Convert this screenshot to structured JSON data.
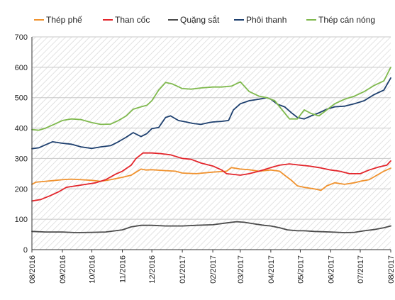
{
  "chart_data": {
    "type": "line",
    "title": "",
    "xlabel": "",
    "ylabel": "",
    "ylim": [
      0,
      700
    ],
    "yticks": [
      0,
      100,
      200,
      300,
      400,
      500,
      600,
      700
    ],
    "xlim": [
      "2016-08-01",
      "2017-08-01"
    ],
    "xticks": [
      {
        "date": "2016-08-01",
        "label": "08/2016"
      },
      {
        "date": "2016-09-01",
        "label": "09/2016"
      },
      {
        "date": "2016-10-01",
        "label": "10/2016"
      },
      {
        "date": "2016-11-01",
        "label": "11/2016"
      },
      {
        "date": "2016-12-01",
        "label": "12/2016"
      },
      {
        "date": "2017-01-01",
        "label": "01/2017"
      },
      {
        "date": "2017-02-01",
        "label": "02/2017"
      },
      {
        "date": "2017-03-01",
        "label": "03/2017"
      },
      {
        "date": "2017-04-01",
        "label": "04/2017"
      },
      {
        "date": "2017-05-01",
        "label": "05/2017"
      },
      {
        "date": "2017-06-01",
        "label": "06/2017"
      },
      {
        "date": "2017-07-01",
        "label": "07/2017"
      },
      {
        "date": "2017-08-01",
        "label": "08/2017"
      }
    ],
    "grid": "diagonal hatch background with horizontal gridlines",
    "legend": "top",
    "series": [
      {
        "name": "Thép phế",
        "color": "#f0922e",
        "points": [
          [
            "2016-08-01",
            215
          ],
          [
            "2016-08-05",
            222
          ],
          [
            "2016-08-15",
            225
          ],
          [
            "2016-08-25",
            228
          ],
          [
            "2016-09-01",
            230
          ],
          [
            "2016-09-10",
            232
          ],
          [
            "2016-09-20",
            230
          ],
          [
            "2016-10-01",
            228
          ],
          [
            "2016-10-10",
            225
          ],
          [
            "2016-10-20",
            230
          ],
          [
            "2016-11-01",
            238
          ],
          [
            "2016-11-10",
            245
          ],
          [
            "2016-11-15",
            255
          ],
          [
            "2016-11-20",
            265
          ],
          [
            "2016-11-25",
            262
          ],
          [
            "2016-12-01",
            263
          ],
          [
            "2016-12-15",
            260
          ],
          [
            "2016-12-25",
            258
          ],
          [
            "2017-01-01",
            252
          ],
          [
            "2017-01-15",
            250
          ],
          [
            "2017-02-01",
            255
          ],
          [
            "2017-02-15",
            258
          ],
          [
            "2017-02-20",
            270
          ],
          [
            "2017-03-01",
            265
          ],
          [
            "2017-03-10",
            263
          ],
          [
            "2017-03-20",
            258
          ],
          [
            "2017-04-01",
            262
          ],
          [
            "2017-04-10",
            258
          ],
          [
            "2017-04-15",
            245
          ],
          [
            "2017-04-22",
            228
          ],
          [
            "2017-04-28",
            210
          ],
          [
            "2017-05-05",
            205
          ],
          [
            "2017-05-15",
            200
          ],
          [
            "2017-05-22",
            195
          ],
          [
            "2017-05-28",
            210
          ],
          [
            "2017-06-05",
            220
          ],
          [
            "2017-06-15",
            215
          ],
          [
            "2017-06-25",
            220
          ],
          [
            "2017-07-01",
            225
          ],
          [
            "2017-07-10",
            230
          ],
          [
            "2017-07-18",
            245
          ],
          [
            "2017-07-25",
            258
          ],
          [
            "2017-08-01",
            268
          ]
        ]
      },
      {
        "name": "Than cốc",
        "color": "#e3252b",
        "points": [
          [
            "2016-08-01",
            160
          ],
          [
            "2016-08-10",
            165
          ],
          [
            "2016-08-20",
            178
          ],
          [
            "2016-08-28",
            190
          ],
          [
            "2016-09-05",
            205
          ],
          [
            "2016-09-15",
            210
          ],
          [
            "2016-09-25",
            215
          ],
          [
            "2016-10-05",
            220
          ],
          [
            "2016-10-15",
            230
          ],
          [
            "2016-10-25",
            248
          ],
          [
            "2016-11-01",
            258
          ],
          [
            "2016-11-10",
            278
          ],
          [
            "2016-11-15",
            300
          ],
          [
            "2016-11-22",
            318
          ],
          [
            "2016-12-01",
            318
          ],
          [
            "2016-12-10",
            316
          ],
          [
            "2016-12-20",
            312
          ],
          [
            "2017-01-01",
            300
          ],
          [
            "2017-01-10",
            297
          ],
          [
            "2017-01-20",
            285
          ],
          [
            "2017-02-01",
            275
          ],
          [
            "2017-02-10",
            262
          ],
          [
            "2017-02-15",
            250
          ],
          [
            "2017-03-01",
            245
          ],
          [
            "2017-03-10",
            250
          ],
          [
            "2017-03-20",
            258
          ],
          [
            "2017-04-01",
            270
          ],
          [
            "2017-04-10",
            278
          ],
          [
            "2017-04-20",
            282
          ],
          [
            "2017-05-01",
            278
          ],
          [
            "2017-05-10",
            275
          ],
          [
            "2017-05-20",
            270
          ],
          [
            "2017-06-01",
            262
          ],
          [
            "2017-06-10",
            258
          ],
          [
            "2017-06-20",
            250
          ],
          [
            "2017-07-01",
            250
          ],
          [
            "2017-07-10",
            262
          ],
          [
            "2017-07-20",
            272
          ],
          [
            "2017-07-28",
            278
          ],
          [
            "2017-08-01",
            292
          ]
        ]
      },
      {
        "name": "Quặng sắt",
        "color": "#4b4b4b",
        "points": [
          [
            "2016-08-01",
            60
          ],
          [
            "2016-08-15",
            58
          ],
          [
            "2016-09-01",
            58
          ],
          [
            "2016-09-15",
            56
          ],
          [
            "2016-10-01",
            57
          ],
          [
            "2016-10-15",
            58
          ],
          [
            "2016-11-01",
            65
          ],
          [
            "2016-11-10",
            75
          ],
          [
            "2016-11-20",
            80
          ],
          [
            "2016-12-01",
            80
          ],
          [
            "2016-12-15",
            78
          ],
          [
            "2017-01-01",
            78
          ],
          [
            "2017-01-15",
            80
          ],
          [
            "2017-02-01",
            82
          ],
          [
            "2017-02-15",
            88
          ],
          [
            "2017-02-25",
            92
          ],
          [
            "2017-03-05",
            90
          ],
          [
            "2017-03-15",
            85
          ],
          [
            "2017-03-25",
            80
          ],
          [
            "2017-04-01",
            78
          ],
          [
            "2017-04-10",
            72
          ],
          [
            "2017-04-18",
            65
          ],
          [
            "2017-04-28",
            62
          ],
          [
            "2017-05-05",
            62
          ],
          [
            "2017-05-15",
            60
          ],
          [
            "2017-06-01",
            58
          ],
          [
            "2017-06-15",
            56
          ],
          [
            "2017-06-25",
            57
          ],
          [
            "2017-07-05",
            62
          ],
          [
            "2017-07-15",
            66
          ],
          [
            "2017-07-25",
            72
          ],
          [
            "2017-08-01",
            78
          ]
        ]
      },
      {
        "name": "Phôi thanh",
        "color": "#1d3f6e",
        "points": [
          [
            "2016-08-01",
            332
          ],
          [
            "2016-08-08",
            335
          ],
          [
            "2016-08-15",
            345
          ],
          [
            "2016-08-22",
            355
          ],
          [
            "2016-09-01",
            350
          ],
          [
            "2016-09-10",
            347
          ],
          [
            "2016-09-20",
            338
          ],
          [
            "2016-10-01",
            333
          ],
          [
            "2016-10-10",
            338
          ],
          [
            "2016-10-20",
            342
          ],
          [
            "2016-10-28",
            355
          ],
          [
            "2016-11-05",
            370
          ],
          [
            "2016-11-12",
            385
          ],
          [
            "2016-11-20",
            372
          ],
          [
            "2016-11-26",
            382
          ],
          [
            "2016-12-01",
            398
          ],
          [
            "2016-12-08",
            402
          ],
          [
            "2016-12-15",
            435
          ],
          [
            "2016-12-20",
            440
          ],
          [
            "2016-12-28",
            425
          ],
          [
            "2017-01-05",
            420
          ],
          [
            "2017-01-12",
            415
          ],
          [
            "2017-01-20",
            412
          ],
          [
            "2017-01-28",
            418
          ],
          [
            "2017-02-01",
            420
          ],
          [
            "2017-02-10",
            422
          ],
          [
            "2017-02-17",
            425
          ],
          [
            "2017-02-22",
            460
          ],
          [
            "2017-03-01",
            480
          ],
          [
            "2017-03-10",
            490
          ],
          [
            "2017-03-20",
            495
          ],
          [
            "2017-03-28",
            500
          ],
          [
            "2017-04-01",
            495
          ],
          [
            "2017-04-08",
            478
          ],
          [
            "2017-04-15",
            470
          ],
          [
            "2017-04-22",
            450
          ],
          [
            "2017-04-28",
            435
          ],
          [
            "2017-05-05",
            430
          ],
          [
            "2017-05-12",
            440
          ],
          [
            "2017-05-20",
            450
          ],
          [
            "2017-05-28",
            462
          ],
          [
            "2017-06-05",
            470
          ],
          [
            "2017-06-15",
            472
          ],
          [
            "2017-06-25",
            480
          ],
          [
            "2017-07-05",
            490
          ],
          [
            "2017-07-15",
            510
          ],
          [
            "2017-07-25",
            525
          ],
          [
            "2017-08-01",
            565
          ]
        ]
      },
      {
        "name": "Thép cán nóng",
        "color": "#7fb94d",
        "points": [
          [
            "2016-08-01",
            395
          ],
          [
            "2016-08-08",
            393
          ],
          [
            "2016-08-15",
            400
          ],
          [
            "2016-08-22",
            410
          ],
          [
            "2016-09-01",
            425
          ],
          [
            "2016-09-10",
            430
          ],
          [
            "2016-09-20",
            428
          ],
          [
            "2016-10-01",
            418
          ],
          [
            "2016-10-10",
            412
          ],
          [
            "2016-10-20",
            413
          ],
          [
            "2016-10-28",
            425
          ],
          [
            "2016-11-05",
            440
          ],
          [
            "2016-11-12",
            462
          ],
          [
            "2016-11-20",
            470
          ],
          [
            "2016-11-26",
            475
          ],
          [
            "2016-12-01",
            490
          ],
          [
            "2016-12-08",
            525
          ],
          [
            "2016-12-15",
            550
          ],
          [
            "2016-12-22",
            545
          ],
          [
            "2017-01-01",
            530
          ],
          [
            "2017-01-10",
            528
          ],
          [
            "2017-01-20",
            532
          ],
          [
            "2017-02-01",
            535
          ],
          [
            "2017-02-10",
            535
          ],
          [
            "2017-02-20",
            538
          ],
          [
            "2017-03-01",
            552
          ],
          [
            "2017-03-10",
            520
          ],
          [
            "2017-03-20",
            505
          ],
          [
            "2017-03-28",
            500
          ],
          [
            "2017-04-05",
            490
          ],
          [
            "2017-04-12",
            462
          ],
          [
            "2017-04-20",
            430
          ],
          [
            "2017-04-28",
            430
          ],
          [
            "2017-05-05",
            460
          ],
          [
            "2017-05-12",
            448
          ],
          [
            "2017-05-20",
            440
          ],
          [
            "2017-05-28",
            460
          ],
          [
            "2017-06-05",
            480
          ],
          [
            "2017-06-15",
            495
          ],
          [
            "2017-06-25",
            505
          ],
          [
            "2017-07-05",
            520
          ],
          [
            "2017-07-15",
            540
          ],
          [
            "2017-07-25",
            555
          ],
          [
            "2017-08-01",
            600
          ]
        ]
      }
    ]
  }
}
